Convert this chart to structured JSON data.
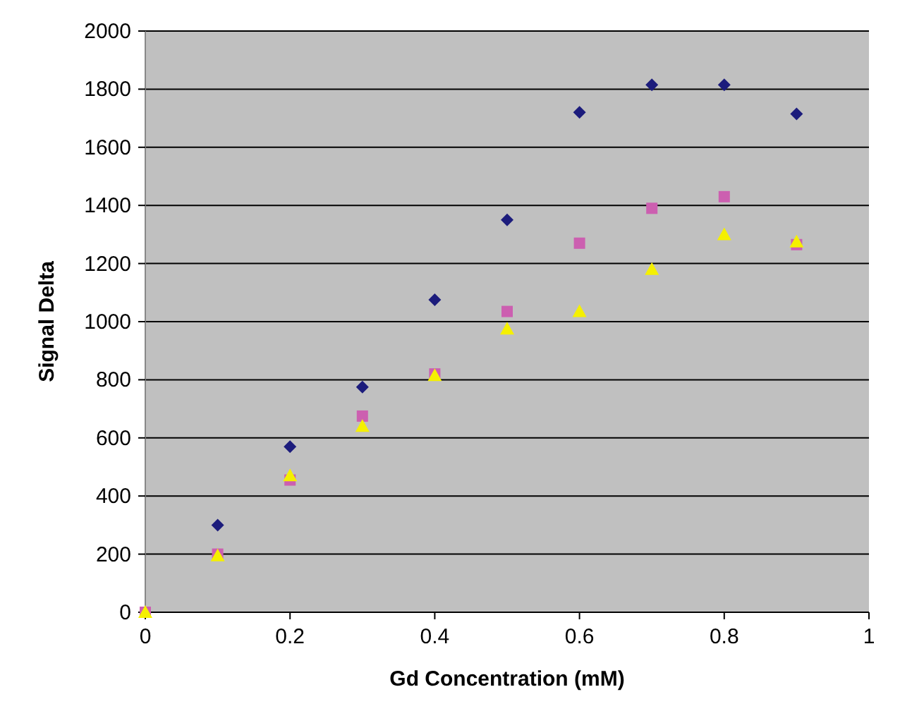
{
  "chart_data": {
    "type": "scatter",
    "xlabel": "Gd Concentration (mM)",
    "ylabel": "Signal Delta",
    "x": [
      0,
      0.1,
      0.2,
      0.3,
      0.4,
      0.5,
      0.6,
      0.7,
      0.8,
      0.9
    ],
    "series": [
      {
        "color": "#1c1c7c",
        "marker": "diamond",
        "values": [
          null,
          300,
          570,
          775,
          1075,
          1350,
          1720,
          1815,
          1815,
          1715
        ]
      },
      {
        "color": "#cc5fb0",
        "marker": "square",
        "values": [
          0,
          200,
          455,
          675,
          820,
          1035,
          1270,
          1390,
          1430,
          1265
        ]
      },
      {
        "color": "#f5f000",
        "marker": "triangle",
        "values": [
          0,
          195,
          470,
          640,
          815,
          975,
          1035,
          1180,
          1300,
          1275
        ]
      }
    ],
    "xlim": [
      0,
      1
    ],
    "xticks": [
      0,
      0.2,
      0.4,
      0.6,
      0.8,
      1
    ],
    "ylim": [
      0,
      2000
    ],
    "yticks": [
      0,
      200,
      400,
      600,
      800,
      1000,
      1200,
      1400,
      1600,
      1800,
      2000
    ],
    "grid": "y"
  }
}
